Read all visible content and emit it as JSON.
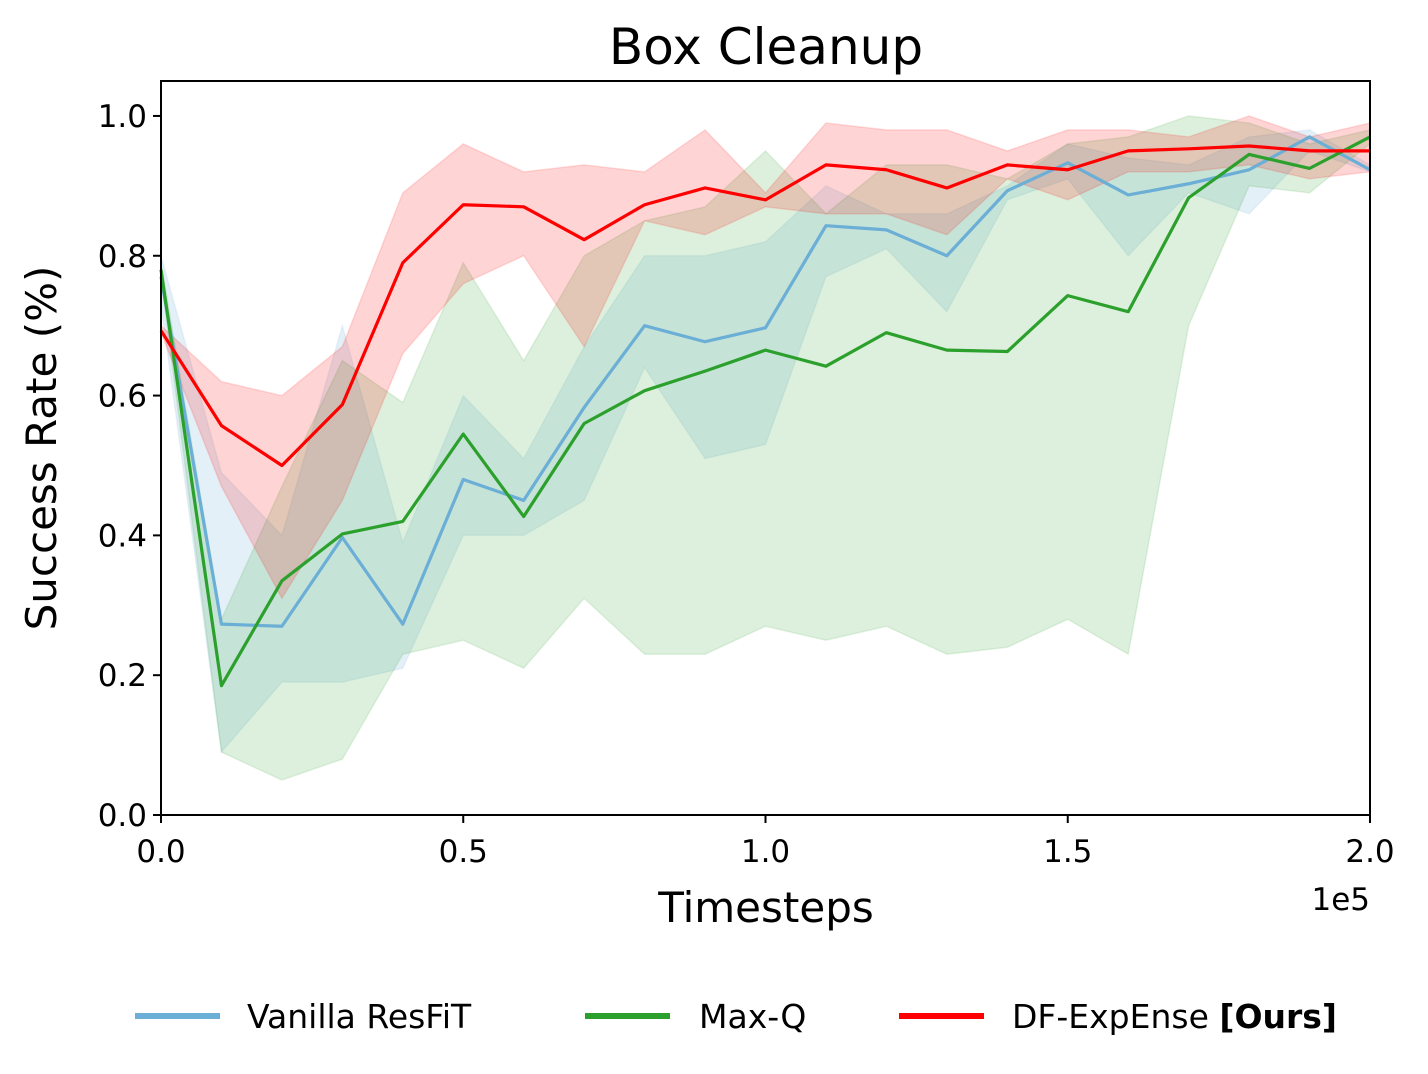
{
  "chart_data": {
    "type": "line",
    "title": "Box Cleanup",
    "xlabel": "Timesteps",
    "ylabel": "Success Rate (%)",
    "x_multiplier": "1e5",
    "xlim": [
      0,
      200000
    ],
    "ylim": [
      0,
      1.05
    ],
    "x_ticks": [
      0,
      50000,
      100000,
      150000,
      200000
    ],
    "x_tick_labels": [
      "0.0",
      "0.5",
      "1.0",
      "1.5",
      "2.0"
    ],
    "y_ticks": [
      0,
      0.2,
      0.4,
      0.6,
      0.8,
      1.0
    ],
    "y_tick_labels": [
      "0.0",
      "0.2",
      "0.4",
      "0.6",
      "0.8",
      "1.0"
    ],
    "grid": false,
    "legend_position": "bottom",
    "x": [
      0,
      10000,
      20000,
      30000,
      40000,
      50000,
      60000,
      70000,
      80000,
      90000,
      100000,
      110000,
      120000,
      130000,
      140000,
      150000,
      160000,
      170000,
      180000,
      190000,
      200000
    ],
    "series": [
      {
        "name": "Vanilla ResFiT",
        "color": "#6baed6",
        "values": [
          0.77,
          0.273,
          0.27,
          0.397,
          0.273,
          0.48,
          0.45,
          0.583,
          0.7,
          0.677,
          0.697,
          0.843,
          0.837,
          0.8,
          0.893,
          0.933,
          0.887,
          0.903,
          0.923,
          0.97,
          0.923
        ],
        "lower": [
          0.73,
          0.09,
          0.19,
          0.19,
          0.21,
          0.4,
          0.4,
          0.45,
          0.64,
          0.51,
          0.53,
          0.77,
          0.81,
          0.72,
          0.88,
          0.91,
          0.8,
          0.89,
          0.86,
          0.95,
          0.92
        ],
        "upper": [
          0.8,
          0.49,
          0.4,
          0.7,
          0.39,
          0.6,
          0.51,
          0.67,
          0.8,
          0.8,
          0.82,
          0.9,
          0.86,
          0.86,
          0.9,
          0.96,
          0.94,
          0.93,
          0.97,
          0.98,
          0.93
        ]
      },
      {
        "name": "Max-Q",
        "color": "#2ca02c",
        "values": [
          0.78,
          0.185,
          0.335,
          0.402,
          0.42,
          0.545,
          0.427,
          0.56,
          0.607,
          0.635,
          0.665,
          0.642,
          0.69,
          0.665,
          0.663,
          0.743,
          0.72,
          0.883,
          0.945,
          0.925,
          0.97
        ],
        "lower": [
          0.77,
          0.09,
          0.05,
          0.08,
          0.23,
          0.25,
          0.21,
          0.31,
          0.23,
          0.23,
          0.27,
          0.25,
          0.27,
          0.23,
          0.24,
          0.28,
          0.23,
          0.7,
          0.9,
          0.89,
          0.96
        ],
        "upper": [
          0.79,
          0.28,
          0.47,
          0.65,
          0.59,
          0.79,
          0.65,
          0.8,
          0.85,
          0.87,
          0.95,
          0.86,
          0.93,
          0.93,
          0.91,
          0.96,
          0.97,
          1.0,
          0.99,
          0.96,
          0.98
        ]
      },
      {
        "name": "DF-ExpEnse",
        "name_suffix": "[Ours]",
        "color": "#ff0000",
        "values": [
          0.693,
          0.557,
          0.5,
          0.587,
          0.79,
          0.873,
          0.87,
          0.823,
          0.873,
          0.897,
          0.88,
          0.93,
          0.923,
          0.897,
          0.93,
          0.923,
          0.95,
          0.953,
          0.957,
          0.95,
          0.95
        ],
        "lower": [
          0.69,
          0.47,
          0.31,
          0.45,
          0.66,
          0.76,
          0.8,
          0.67,
          0.85,
          0.83,
          0.87,
          0.86,
          0.86,
          0.83,
          0.91,
          0.88,
          0.92,
          0.92,
          0.93,
          0.91,
          0.92
        ],
        "upper": [
          0.7,
          0.62,
          0.6,
          0.67,
          0.89,
          0.96,
          0.92,
          0.93,
          0.92,
          0.98,
          0.89,
          0.99,
          0.98,
          0.98,
          0.95,
          0.98,
          0.98,
          0.97,
          1.0,
          0.97,
          0.99
        ]
      }
    ]
  }
}
